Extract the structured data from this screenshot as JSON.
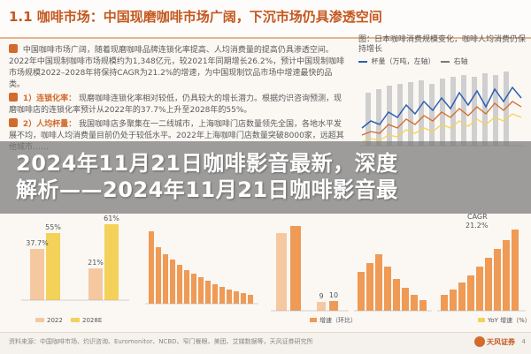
{
  "header": {
    "title": "1.1 咖啡市场：中国现磨咖啡市场广阔，下沉市场仍具渗透空间",
    "faded_suffix": "…"
  },
  "left_text": {
    "intro": "中国咖啡市场广阔，随着现磨咖啡品牌连锁化率提高、人均消费量的提高仍具渗透空间。2022年中国现制咖啡市场规模约为1,348亿元，较2021年同期增长26.2%，预计中国现制咖啡市场规模2022–2028年将保持CAGR为21.2%的增速，为中国现制饮品市场中增速最快的品类。",
    "bullet1_label": "1）连锁化率：",
    "bullet1_text": "现磨咖啡连锁化率相对较低，仍具较大的增长潜力。根据灼识咨询预测，现磨咖啡店的连锁化率预计从2022年的37.7%上升至2028年的55%。",
    "bullet2_label": "2）人均杯量：",
    "bullet2_text": "我国咖啡店多聚集在一二线城市，上海咖啡门店数量领先全国，各地水平发展不均，咖啡人均消费量目前仍处于较低水平。2022年上海咖啡门店数量突破8000家，远超其他城市……"
  },
  "chart_top": {
    "title": "图：日本咖啡消费规模变化，咖啡人均消费仍保持增长",
    "legend_a": "杯量（万吨，左轴）",
    "legend_b": "右轴"
  },
  "headline": {
    "line1": "2024年11月21日咖啡影音最新，深度",
    "line2": "解析——2024年11月21日咖啡影音最"
  },
  "bottom": {
    "chart1_labels": [
      "37.7%",
      "55%",
      "21%",
      "61%"
    ],
    "chart1_legend": [
      "2022",
      "2028E"
    ],
    "chart4_labels": [
      "CAGR",
      "21.2%"
    ],
    "bar_values_small": [
      "9",
      "10"
    ],
    "legend_growth": "增速（环比）",
    "legend_yoy": "YoY 增速（%）"
  },
  "footer": {
    "source": "资料来源：中国咖啡市场、灼识咨询、Euromonitor、NCBD、窄门餐眼、美团、艾媒数据等，天风证券研究所",
    "logo": "天风证券",
    "page": "4"
  },
  "colors": {
    "accent": "#d36b2d",
    "title_orange": "#c4581f",
    "bar_orange": "#ef9a55",
    "bar_light": "#f6c8a0",
    "yellow": "#f4d25a",
    "line_blue": "#2d5fb3"
  }
}
